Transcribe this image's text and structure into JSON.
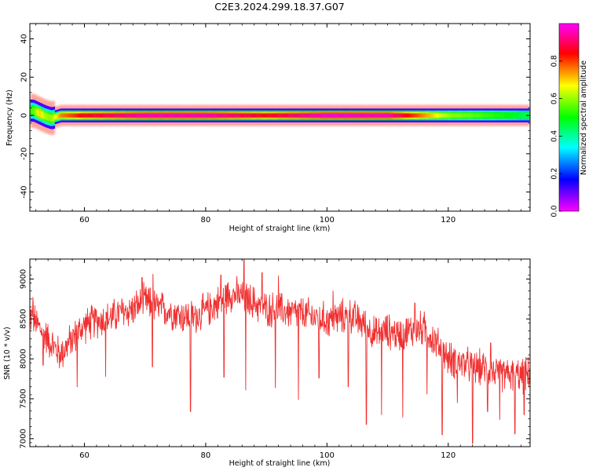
{
  "title": "C2E3.2024.299.18.37.G07",
  "chart_data": [
    {
      "type": "heatmap",
      "xlabel": "Height of straight line (km)",
      "ylabel": "Frequency (Hz)",
      "xlim": [
        51,
        133.5
      ],
      "ylim": [
        -50,
        48
      ],
      "x_ticks": [
        "60",
        "80",
        "100",
        "120"
      ],
      "x_tick_values": [
        60,
        80,
        100,
        120
      ],
      "y_ticks": [
        "-40",
        "-20",
        "0",
        "20",
        "40"
      ],
      "y_tick_values": [
        -40,
        -20,
        0,
        20,
        40
      ],
      "colorbar": {
        "label": "Normalized spectral amplitude",
        "ticks": [
          "0.0",
          "0.2",
          "0.4",
          "0.6",
          "0.8"
        ],
        "tick_values": [
          0.0,
          0.2,
          0.4,
          0.6,
          0.8
        ],
        "range": [
          0,
          1
        ],
        "colormap": "rainbow (magenta-blue-cyan-green-yellow-red-magenta)"
      },
      "ridge": {
        "description": "narrow spectral ridge centered near 0 Hz across the full height range",
        "x": [
          51.5,
          52.5,
          53.5,
          54.5,
          56,
          60,
          70,
          80,
          90,
          100,
          110,
          120,
          130,
          133
        ],
        "center_hz": [
          2.5,
          1.0,
          -0.5,
          -1.5,
          0.0,
          0.0,
          0.0,
          0.0,
          0.0,
          0.0,
          0.0,
          0.0,
          0.0,
          0.0
        ],
        "peak_amplitude": [
          0.55,
          0.7,
          0.6,
          0.6,
          0.75,
          0.85,
          0.95,
          0.95,
          0.85,
          0.97,
          0.95,
          0.6,
          0.5,
          0.45
        ]
      }
    },
    {
      "type": "line",
      "xlabel": "Height of straight line (km)",
      "ylabel": "SNR (10 * v/v)",
      "xlim": [
        51,
        133.5
      ],
      "ylim": [
        6900,
        9250
      ],
      "x_ticks": [
        "60",
        "80",
        "100",
        "120"
      ],
      "x_tick_values": [
        60,
        80,
        100,
        120
      ],
      "y_ticks": [
        "7000",
        "7500",
        "8000",
        "8500",
        "9000"
      ],
      "y_tick_values": [
        7000,
        7500,
        8000,
        8500,
        9000
      ],
      "color": "#f03030",
      "series": [
        {
          "description": "noisy SNR trace (rendered with ~1300 samples of jitter around this envelope)",
          "x": [
            51,
            52,
            54,
            56,
            58,
            60,
            62,
            64,
            66,
            68,
            70,
            72,
            74,
            76,
            78,
            80,
            82,
            84,
            86,
            88,
            90,
            92,
            94,
            96,
            98,
            100,
            102,
            104,
            106,
            108,
            110,
            112,
            114,
            116,
            118,
            120,
            122,
            124,
            126,
            128,
            130,
            132,
            133.5
          ],
          "y": [
            8550,
            8450,
            8250,
            8050,
            8250,
            8420,
            8480,
            8500,
            8580,
            8620,
            8720,
            8640,
            8600,
            8540,
            8520,
            8600,
            8700,
            8820,
            8780,
            8700,
            8620,
            8620,
            8580,
            8560,
            8520,
            8480,
            8520,
            8540,
            8440,
            8300,
            8350,
            8300,
            8360,
            8380,
            8200,
            8000,
            7950,
            7900,
            7880,
            7820,
            7800,
            7780,
            7800
          ],
          "noise_amplitude": 260,
          "dips": [
            {
              "x": 53.2,
              "y": 7920
            },
            {
              "x": 58.8,
              "y": 7650
            },
            {
              "x": 63.5,
              "y": 7780
            },
            {
              "x": 71.2,
              "y": 7900
            },
            {
              "x": 77.5,
              "y": 7340
            },
            {
              "x": 83.0,
              "y": 7770
            },
            {
              "x": 86.6,
              "y": 7610
            },
            {
              "x": 91.5,
              "y": 7640
            },
            {
              "x": 95.3,
              "y": 7490
            },
            {
              "x": 98.7,
              "y": 7760
            },
            {
              "x": 103.5,
              "y": 7650
            },
            {
              "x": 106.5,
              "y": 7180
            },
            {
              "x": 109.0,
              "y": 7300
            },
            {
              "x": 112.5,
              "y": 7270
            },
            {
              "x": 116.5,
              "y": 7560
            },
            {
              "x": 119.0,
              "y": 7050
            },
            {
              "x": 121.5,
              "y": 7450
            },
            {
              "x": 124.0,
              "y": 6940
            },
            {
              "x": 126.5,
              "y": 7340
            },
            {
              "x": 128.5,
              "y": 7240
            },
            {
              "x": 131.0,
              "y": 7060
            },
            {
              "x": 132.5,
              "y": 7300
            }
          ],
          "peaks": [
            {
              "x": 51.5,
              "y": 8770
            },
            {
              "x": 69.5,
              "y": 9020
            },
            {
              "x": 71.3,
              "y": 9060
            },
            {
              "x": 82.5,
              "y": 9050
            },
            {
              "x": 86.3,
              "y": 9240
            },
            {
              "x": 89.3,
              "y": 9080
            },
            {
              "x": 92.0,
              "y": 9040
            },
            {
              "x": 101.0,
              "y": 8850
            },
            {
              "x": 114.5,
              "y": 8700
            },
            {
              "x": 127.0,
              "y": 8200
            }
          ]
        }
      ]
    }
  ]
}
